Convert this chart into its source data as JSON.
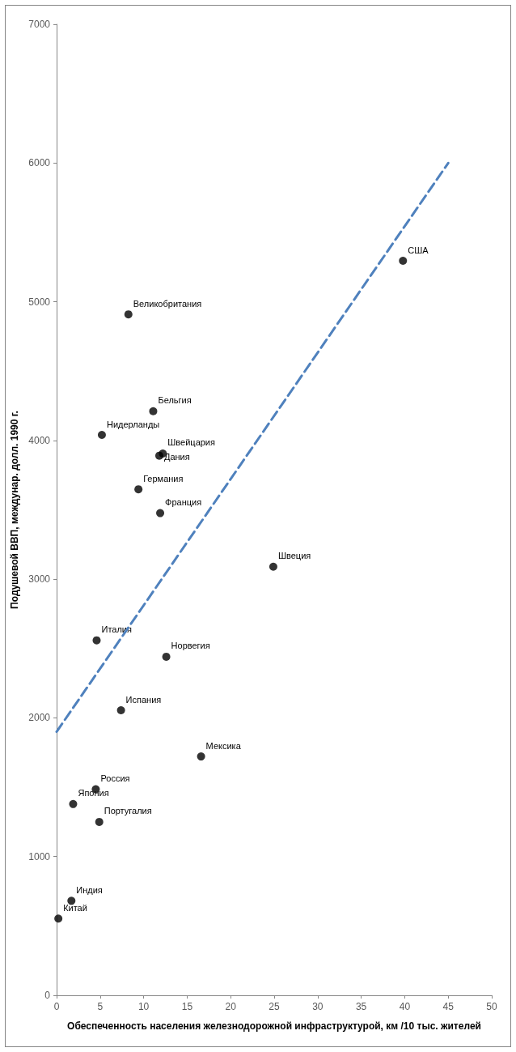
{
  "chart_data": {
    "type": "scatter",
    "xlabel": "Обеспеченность населения железнодорожной инфраструктурой, км /10 тыс. жителей",
    "ylabel": "Подушевой ВВП, междунар. долл. 1990 г.",
    "xlim": [
      0,
      50
    ],
    "xticks": [
      0,
      5,
      10,
      15,
      20,
      25,
      30,
      35,
      40,
      45,
      50
    ],
    "ylim": [
      0,
      7000
    ],
    "yticks": [
      0,
      1000,
      2000,
      3000,
      4000,
      5000,
      6000,
      7000
    ],
    "grid": false,
    "marker": "circle",
    "series": [
      {
        "type": "scatter",
        "color": "#000000",
        "x": [
          39.8,
          24.9,
          16.6,
          12.6,
          11.9,
          12.2,
          11.8,
          11.1,
          8.25,
          9.4,
          5.2,
          7.4,
          4.6,
          4.5,
          4.9,
          1.9,
          1.7,
          0.2
        ],
        "values": [
          5295,
          3090,
          1722,
          2441,
          3476,
          3906,
          3890,
          4211,
          4909,
          3648,
          4040,
          2055,
          2559,
          1486,
          1250,
          1379,
          681,
          553
        ]
      },
      {
        "type": "line",
        "color": "#4f81bd",
        "line_style": "dashed",
        "marker": "none",
        "x": [
          0,
          45
        ],
        "values": [
          1900,
          6000
        ]
      }
    ],
    "annotations": [
      {
        "text": "США",
        "x": 39.8,
        "y": 5295
      },
      {
        "text": "Швеция",
        "x": 24.9,
        "y": 3090
      },
      {
        "text": "Мексика",
        "x": 16.6,
        "y": 1722
      },
      {
        "text": "Норвегия",
        "x": 12.6,
        "y": 2441
      },
      {
        "text": "Франция",
        "x": 11.9,
        "y": 3476
      },
      {
        "text": "Швейцария",
        "x": 12.2,
        "y": 3906
      },
      {
        "text": "Дания",
        "x": 11.8,
        "y": 3890
      },
      {
        "text": "Бельгия",
        "x": 11.1,
        "y": 4211
      },
      {
        "text": "Великобритания",
        "x": 8.25,
        "y": 4909
      },
      {
        "text": "Германия",
        "x": 9.4,
        "y": 3648
      },
      {
        "text": "Нидерланды",
        "x": 5.2,
        "y": 4040
      },
      {
        "text": "Испания",
        "x": 7.4,
        "y": 2055
      },
      {
        "text": "Италия",
        "x": 4.6,
        "y": 2559
      },
      {
        "text": "Россия",
        "x": 4.5,
        "y": 1486
      },
      {
        "text": "Португалия",
        "x": 4.9,
        "y": 1250
      },
      {
        "text": "Япония",
        "x": 1.9,
        "y": 1379
      },
      {
        "text": "Индия",
        "x": 1.7,
        "y": 681
      },
      {
        "text": "Китай",
        "x": 0.2,
        "y": 553
      }
    ]
  }
}
